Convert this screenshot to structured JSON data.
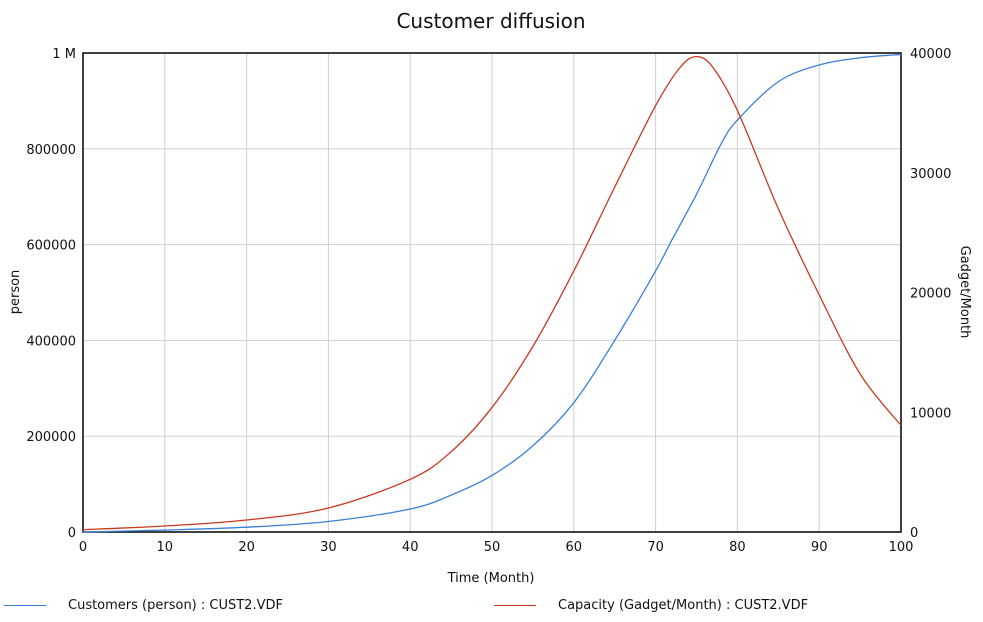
{
  "chart_data": {
    "type": "line",
    "title": "Customer diffusion",
    "xlabel": "Time (Month)",
    "ylabel_left": "person",
    "ylabel_right": "Gadget/Month",
    "xlim": [
      0,
      100
    ],
    "ylim_left": [
      0,
      1000000
    ],
    "ylim_right": [
      0,
      40000
    ],
    "x_ticks": [
      "0",
      "10",
      "20",
      "30",
      "40",
      "50",
      "60",
      "70",
      "80",
      "90",
      "100"
    ],
    "y_left_ticks": [
      "0",
      "200000",
      "400000",
      "600000",
      "800000",
      "1 M"
    ],
    "y_right_ticks": [
      "0",
      "10000",
      "20000",
      "30000",
      "40000"
    ],
    "grid": true,
    "series": [
      {
        "name": "Customers (person) : CUST2.VDF",
        "axis": "left",
        "color": "#3a80d8",
        "x": [
          0,
          10,
          20,
          30,
          40,
          45,
          50,
          55,
          60,
          65,
          70,
          72,
          75,
          78,
          80,
          85,
          90,
          95,
          100
        ],
        "y": [
          0,
          4000,
          10000,
          22000,
          48000,
          77000,
          118000,
          180000,
          270000,
          400000,
          545000,
          610000,
          705000,
          810000,
          860000,
          940000,
          975000,
          990000,
          997000
        ]
      },
      {
        "name": "Capacity (Gadget/Month) : CUST2.VDF",
        "axis": "right",
        "color": "#c8381f",
        "x": [
          0,
          10,
          20,
          30,
          40,
          45,
          50,
          55,
          60,
          65,
          70,
          73,
          75,
          77,
          80,
          85,
          90,
          95,
          100
        ],
        "y": [
          200,
          500,
          1000,
          2000,
          4400,
          6700,
          10400,
          15500,
          21800,
          28800,
          35600,
          38800,
          39700,
          38800,
          35200,
          27000,
          19800,
          13200,
          8900
        ]
      }
    ]
  }
}
